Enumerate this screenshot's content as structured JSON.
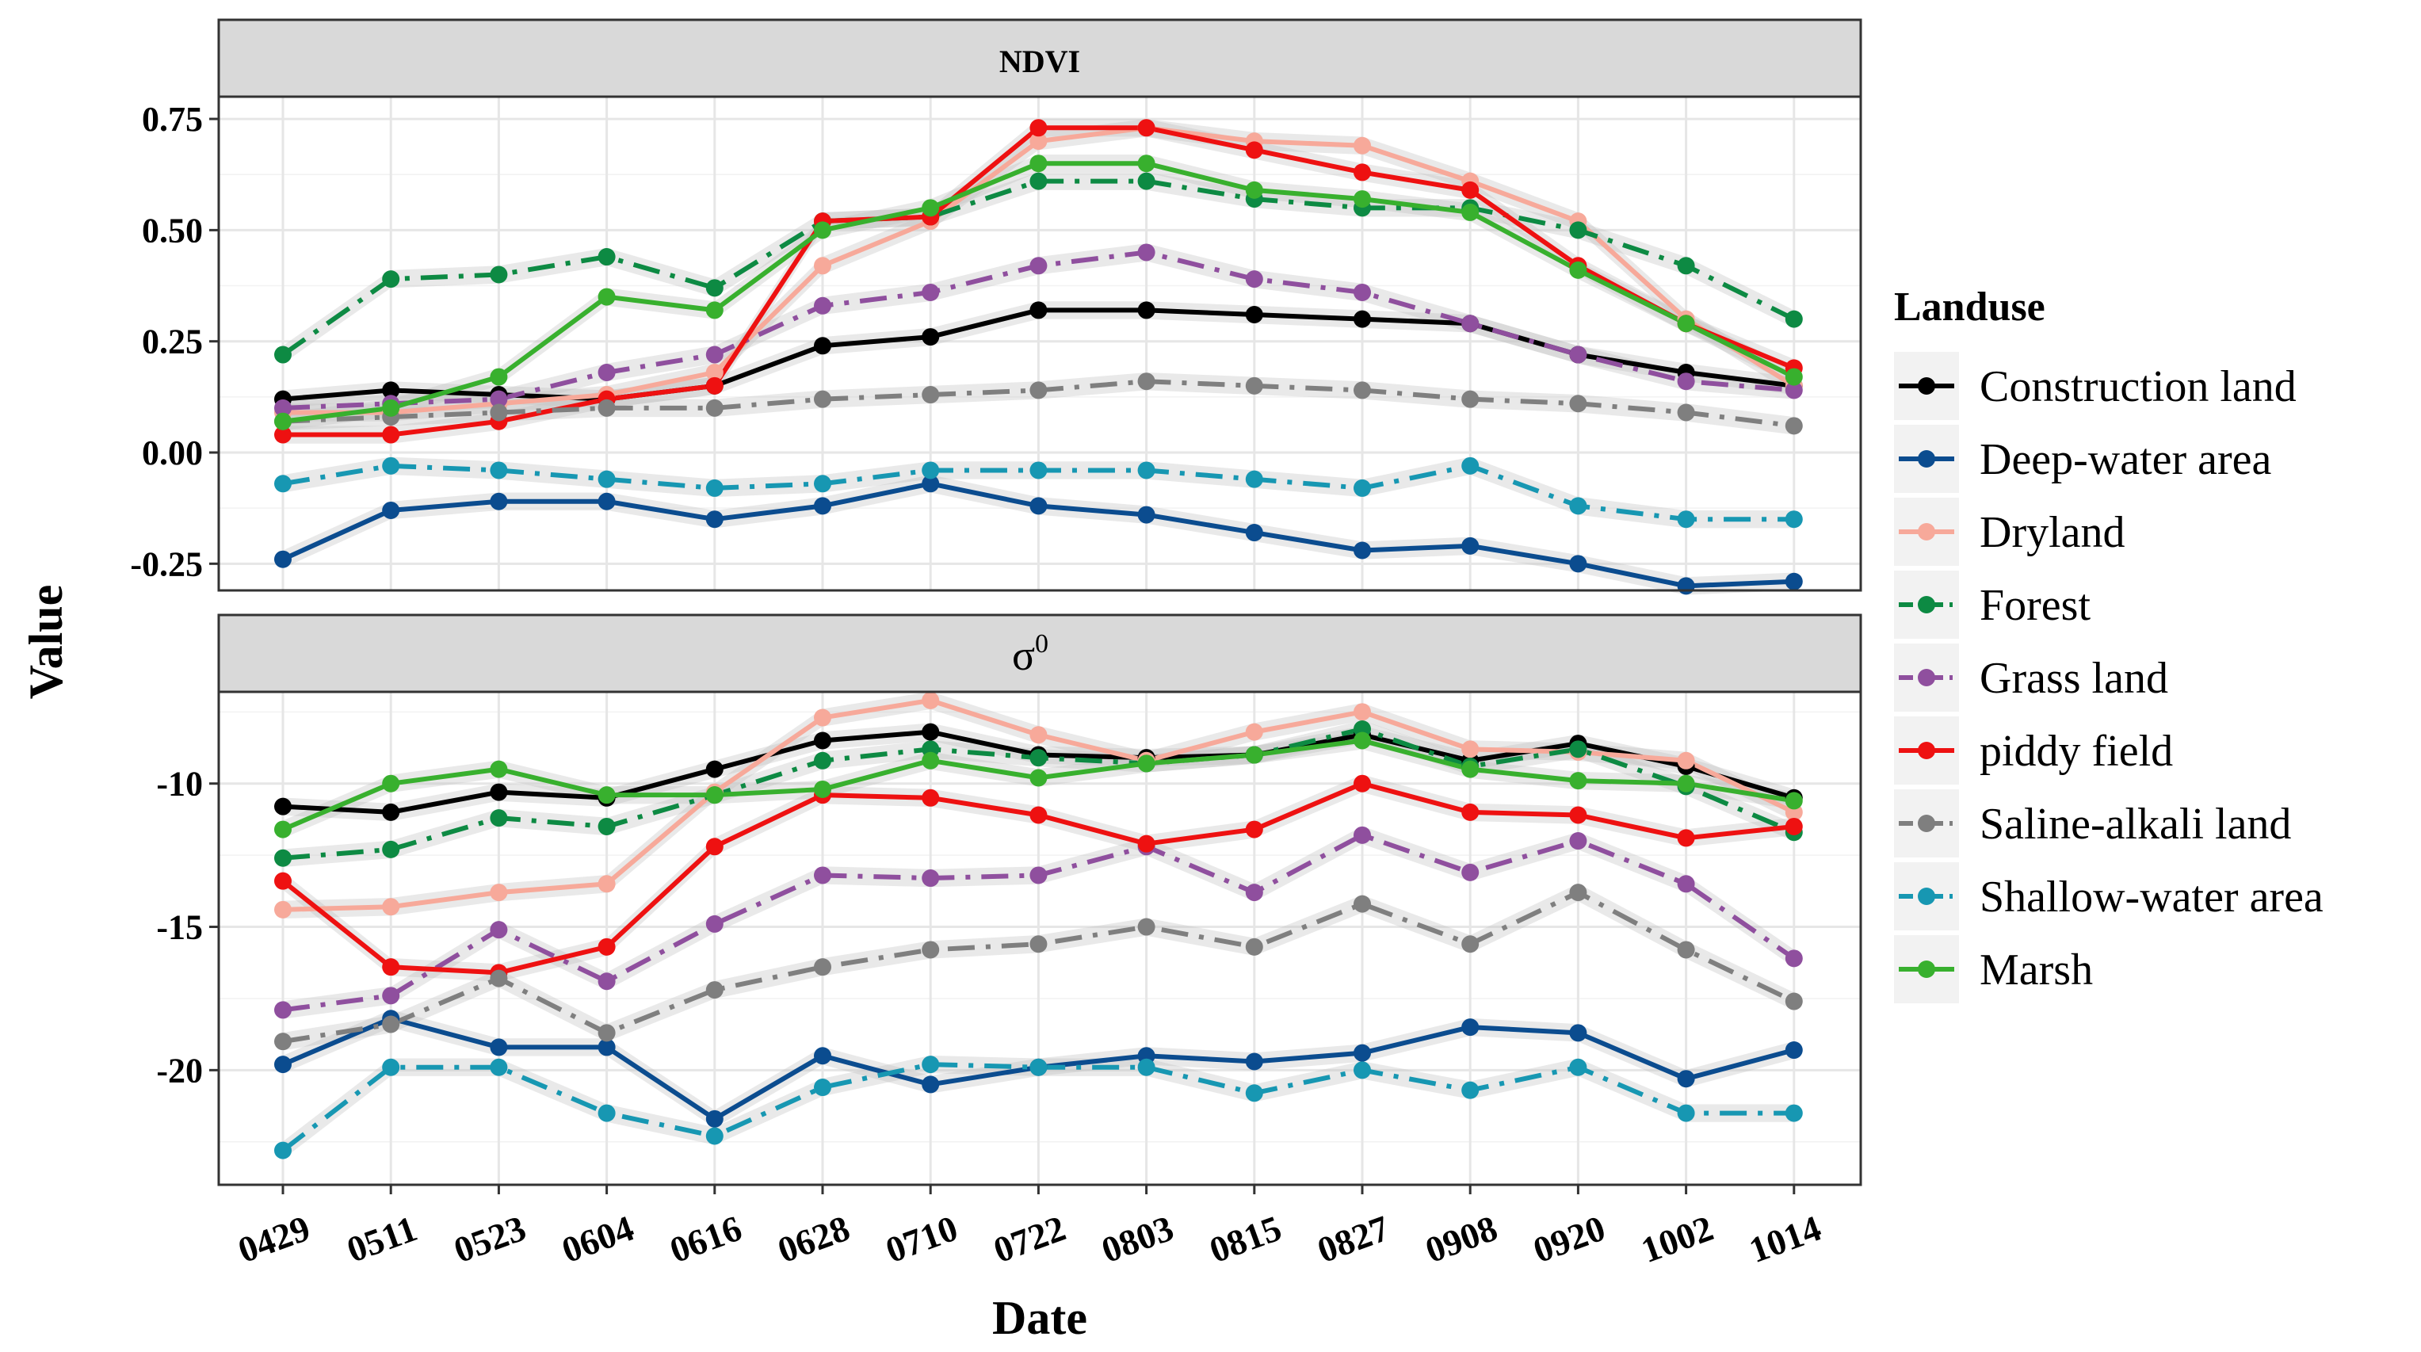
{
  "chart_data": {
    "type": "line",
    "xlabel": "Date",
    "ylabel": "Value",
    "legend_title": "Landuse",
    "legend_position": "right",
    "categories": [
      "0429",
      "0511",
      "0523",
      "0604",
      "0616",
      "0628",
      "0710",
      "0722",
      "0803",
      "0815",
      "0827",
      "0908",
      "0920",
      "1002",
      "1014"
    ],
    "series_styles": [
      {
        "name": "Construction land",
        "color": "#000000",
        "dash": "solid"
      },
      {
        "name": "Deep-water area",
        "color": "#0b4c8f",
        "dash": "solid"
      },
      {
        "name": "Dryland",
        "color": "#f7a99a",
        "dash": "solid"
      },
      {
        "name": "Forest",
        "color": "#0d8a43",
        "dash": "dashdot"
      },
      {
        "name": "Grass land",
        "color": "#8f4f9e",
        "dash": "dashdot"
      },
      {
        "name": "piddy field",
        "color": "#ee1111",
        "dash": "solid"
      },
      {
        "name": "Saline-alkali land",
        "color": "#7f7f7f",
        "dash": "dashdot"
      },
      {
        "name": "Shallow-water area",
        "color": "#1797b2",
        "dash": "dashdot"
      },
      {
        "name": "Marsh",
        "color": "#38b02e",
        "dash": "solid"
      }
    ],
    "panels": [
      {
        "title": "NDVI",
        "ylim": [
          -0.31,
          0.8
        ],
        "yticks": [
          -0.25,
          0.0,
          0.25,
          0.5,
          0.75
        ],
        "ytick_labels": [
          "-0.25",
          "0.00",
          "0.25",
          "0.50",
          "0.75"
        ],
        "series": [
          {
            "name": "Construction land",
            "values": [
              0.12,
              0.14,
              0.13,
              0.12,
              0.15,
              0.24,
              0.26,
              0.32,
              0.32,
              0.31,
              0.3,
              0.29,
              0.22,
              0.18,
              0.15
            ]
          },
          {
            "name": "Deep-water area",
            "values": [
              -0.24,
              -0.13,
              -0.11,
              -0.11,
              -0.15,
              -0.12,
              -0.07,
              -0.12,
              -0.14,
              -0.18,
              -0.22,
              -0.21,
              -0.25,
              -0.3,
              -0.29
            ]
          },
          {
            "name": "Dryland",
            "values": [
              0.09,
              0.09,
              0.11,
              0.13,
              0.18,
              0.42,
              0.52,
              0.7,
              0.73,
              0.7,
              0.69,
              0.61,
              0.52,
              0.3,
              0.15
            ]
          },
          {
            "name": "Forest",
            "values": [
              0.22,
              0.39,
              0.4,
              0.44,
              0.37,
              0.52,
              0.53,
              0.61,
              0.61,
              0.57,
              0.55,
              0.55,
              0.5,
              0.42,
              0.3
            ]
          },
          {
            "name": "Grass land",
            "values": [
              0.1,
              0.11,
              0.12,
              0.18,
              0.22,
              0.33,
              0.36,
              0.42,
              0.45,
              0.39,
              0.36,
              0.29,
              0.22,
              0.16,
              0.14
            ]
          },
          {
            "name": "piddy field",
            "values": [
              0.04,
              0.04,
              0.07,
              0.12,
              0.15,
              0.52,
              0.53,
              0.73,
              0.73,
              0.68,
              0.63,
              0.59,
              0.42,
              0.29,
              0.19
            ]
          },
          {
            "name": "Saline-alkali land",
            "values": [
              0.07,
              0.08,
              0.09,
              0.1,
              0.1,
              0.12,
              0.13,
              0.14,
              0.16,
              0.15,
              0.14,
              0.12,
              0.11,
              0.09,
              0.06
            ]
          },
          {
            "name": "Shallow-water area",
            "values": [
              -0.07,
              -0.03,
              -0.04,
              -0.06,
              -0.08,
              -0.07,
              -0.04,
              -0.04,
              -0.04,
              -0.06,
              -0.08,
              -0.03,
              -0.12,
              -0.15,
              -0.15
            ]
          },
          {
            "name": "Marsh",
            "values": [
              0.07,
              0.1,
              0.17,
              0.35,
              0.32,
              0.5,
              0.55,
              0.65,
              0.65,
              0.59,
              0.57,
              0.54,
              0.41,
              0.29,
              0.17
            ]
          }
        ]
      },
      {
        "title": "σ",
        "title_superscript": "0",
        "ylim": [
          -24,
          -6.8
        ],
        "yticks": [
          -20,
          -15,
          -10
        ],
        "ytick_labels": [
          "-20",
          "-15",
          "-10"
        ],
        "series": [
          {
            "name": "Construction land",
            "values": [
              -10.8,
              -11.0,
              -10.3,
              -10.5,
              -9.5,
              -8.5,
              -8.2,
              -9.0,
              -9.1,
              -9.0,
              -8.3,
              -9.2,
              -8.6,
              -9.4,
              -10.5
            ]
          },
          {
            "name": "Deep-water area",
            "values": [
              -19.8,
              -18.2,
              -19.2,
              -19.2,
              -21.7,
              -19.5,
              -20.5,
              -19.9,
              -19.5,
              -19.7,
              -19.4,
              -18.5,
              -18.7,
              -20.3,
              -19.3
            ]
          },
          {
            "name": "Dryland",
            "values": [
              -14.4,
              -14.3,
              -13.8,
              -13.5,
              -10.3,
              -7.7,
              -7.1,
              -8.3,
              -9.2,
              -8.2,
              -7.5,
              -8.8,
              -8.9,
              -9.2,
              -11.0
            ]
          },
          {
            "name": "Forest",
            "values": [
              -12.6,
              -12.3,
              -11.2,
              -11.5,
              -10.4,
              -9.2,
              -8.8,
              -9.1,
              -9.3,
              -9.0,
              -8.1,
              -9.4,
              -8.8,
              -10.1,
              -11.7
            ]
          },
          {
            "name": "Grass land",
            "values": [
              -17.9,
              -17.4,
              -15.1,
              -16.9,
              -14.9,
              -13.2,
              -13.3,
              -13.2,
              -12.2,
              -13.8,
              -11.8,
              -13.1,
              -12.0,
              -13.5,
              -16.1
            ]
          },
          {
            "name": "piddy field",
            "values": [
              -13.4,
              -16.4,
              -16.6,
              -15.7,
              -12.2,
              -10.4,
              -10.5,
              -11.1,
              -12.1,
              -11.6,
              -10.0,
              -11.0,
              -11.1,
              -11.9,
              -11.5
            ]
          },
          {
            "name": "Saline-alkali land",
            "values": [
              -19.0,
              -18.4,
              -16.8,
              -18.7,
              -17.2,
              -16.4,
              -15.8,
              -15.6,
              -15.0,
              -15.7,
              -14.2,
              -15.6,
              -13.8,
              -15.8,
              -17.6
            ]
          },
          {
            "name": "Shallow-water area",
            "values": [
              -22.8,
              -19.9,
              -19.9,
              -21.5,
              -22.3,
              -20.6,
              -19.8,
              -19.9,
              -19.9,
              -20.8,
              -20.0,
              -20.7,
              -19.9,
              -21.5,
              -21.5
            ]
          },
          {
            "name": "Marsh",
            "values": [
              -11.6,
              -10.0,
              -9.5,
              -10.4,
              -10.4,
              -10.2,
              -9.2,
              -9.8,
              -9.3,
              -9.0,
              -8.5,
              -9.5,
              -9.9,
              -10.0,
              -10.6
            ]
          }
        ]
      }
    ]
  }
}
